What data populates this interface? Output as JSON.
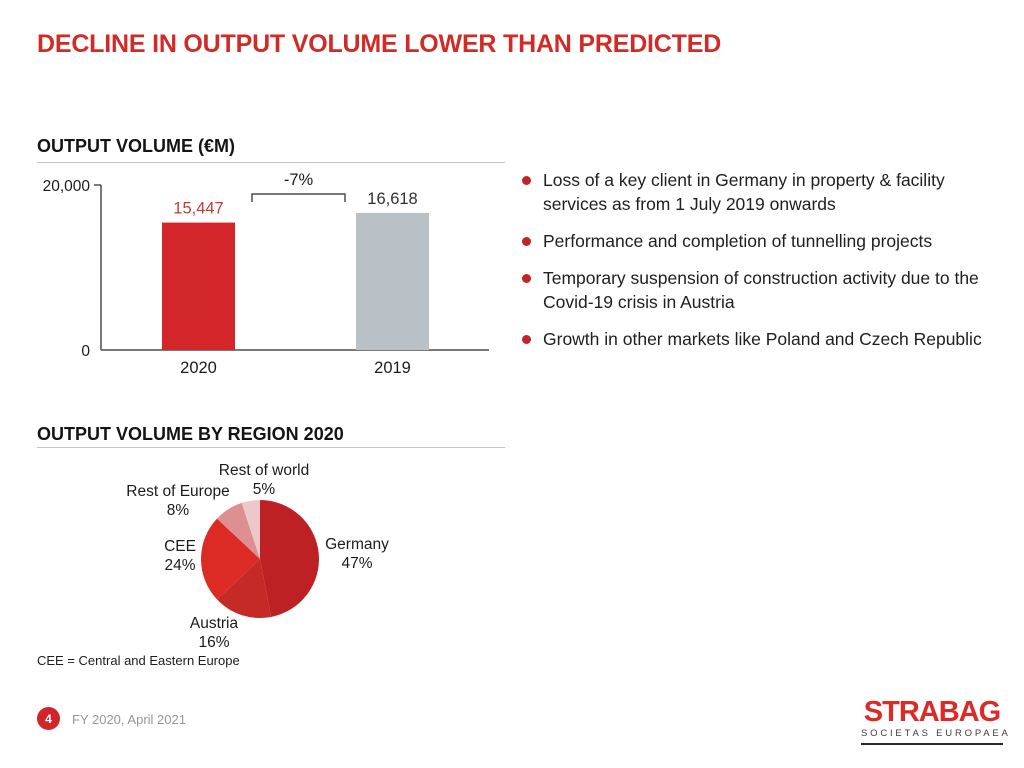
{
  "slide": {
    "title": "DECLINE IN OUTPUT VOLUME LOWER THAN PREDICTED",
    "title_color": "#d02b26"
  },
  "bullets": [
    "Loss of a key client in Germany in property & facility services as from 1 July 2019 onwards",
    "Performance and completion of tunnelling projects",
    "Temporary suspension of construction activity due to the Covid-19 crisis in Austria",
    "Growth in other markets like Poland and Czech Republic"
  ],
  "chart_data": [
    {
      "type": "bar",
      "title": "OUTPUT VOLUME (€M)",
      "categories": [
        "2020",
        "2019"
      ],
      "values": [
        15447,
        16618
      ],
      "value_labels": [
        "15,447",
        "16,618"
      ],
      "bar_colors": [
        "#d2262b",
        "#b9c1c6"
      ],
      "value_label_colors": [
        "#c43c36",
        "#303030"
      ],
      "annotation": "-7%",
      "ylim": [
        0,
        20000
      ],
      "ytick_labels": [
        "20,000",
        "0"
      ],
      "grid": false,
      "legend": false
    },
    {
      "type": "pie",
      "title": "OUTPUT VOLUME BY REGION 2020",
      "slices": [
        {
          "name": "Germany",
          "value": 47,
          "pct_label": "47%",
          "color": "#be2124"
        },
        {
          "name": "Austria",
          "value": 16,
          "pct_label": "16%",
          "color": "#c52a26"
        },
        {
          "name": "CEE",
          "value": 24,
          "pct_label": "24%",
          "color": "#dc2a24"
        },
        {
          "name": "Rest of Europe",
          "value": 8,
          "pct_label": "8%",
          "color": "#dd8f91"
        },
        {
          "name": "Rest of world",
          "value": 5,
          "pct_label": "5%",
          "color": "#ecc8ca"
        }
      ],
      "start_angle_deg": 0,
      "direction": "clockwise",
      "footnote": "CEE = Central and Eastern Europe"
    }
  ],
  "footer": {
    "page_number": "4",
    "date": "FY 2020, April 2021",
    "logo_name": "STRABAG",
    "logo_subtitle": "SOCIETAS EUROPAEA"
  }
}
